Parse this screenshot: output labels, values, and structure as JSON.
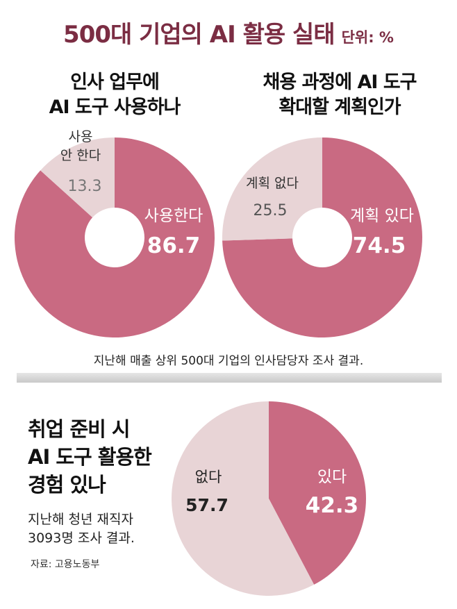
{
  "title": "500대 기업의 AI 활용 실태",
  "unit": "단위: %",
  "colors": {
    "primary": "#c96a82",
    "secondary": "#e8d4d6",
    "title": "#7b2d43"
  },
  "chart_data": [
    {
      "type": "pie",
      "title_lines": [
        "인사 업무에",
        "AI 도구 사용하나"
      ],
      "slices": [
        {
          "label": "사용한다",
          "value": 86.7,
          "label_lines": [
            "사용한다"
          ],
          "value_text": "86.7"
        },
        {
          "label": "사용 안 한다",
          "value": 13.3,
          "label_lines": [
            "사용",
            "안 한다"
          ],
          "value_text": "13.3"
        }
      ]
    },
    {
      "type": "pie",
      "title_lines": [
        "채용 과정에 AI 도구",
        "확대할 계획인가"
      ],
      "slices": [
        {
          "label": "계획 있다",
          "value": 74.5,
          "label_lines": [
            "계획 있다"
          ],
          "value_text": "74.5"
        },
        {
          "label": "계획 없다",
          "value": 25.5,
          "label_lines": [
            "계획 없다"
          ],
          "value_text": "25.5"
        }
      ]
    },
    {
      "type": "pie",
      "title_lines": [
        "취업 준비 시",
        "AI 도구 활용한",
        "경험 있나"
      ],
      "slices": [
        {
          "label": "있다",
          "value": 42.3,
          "label_lines": [
            "있다"
          ],
          "value_text": "42.3"
        },
        {
          "label": "없다",
          "value": 57.7,
          "label_lines": [
            "없다"
          ],
          "value_text": "57.7"
        }
      ]
    }
  ],
  "notes": {
    "top_survey": "지난해 매출 상위 500대 기업의 인사담당자 조사 결과.",
    "bottom_survey_lines": [
      "지난해 청년 재직자",
      "3093명 조사 결과."
    ],
    "source": "자료: 고용노동부"
  }
}
